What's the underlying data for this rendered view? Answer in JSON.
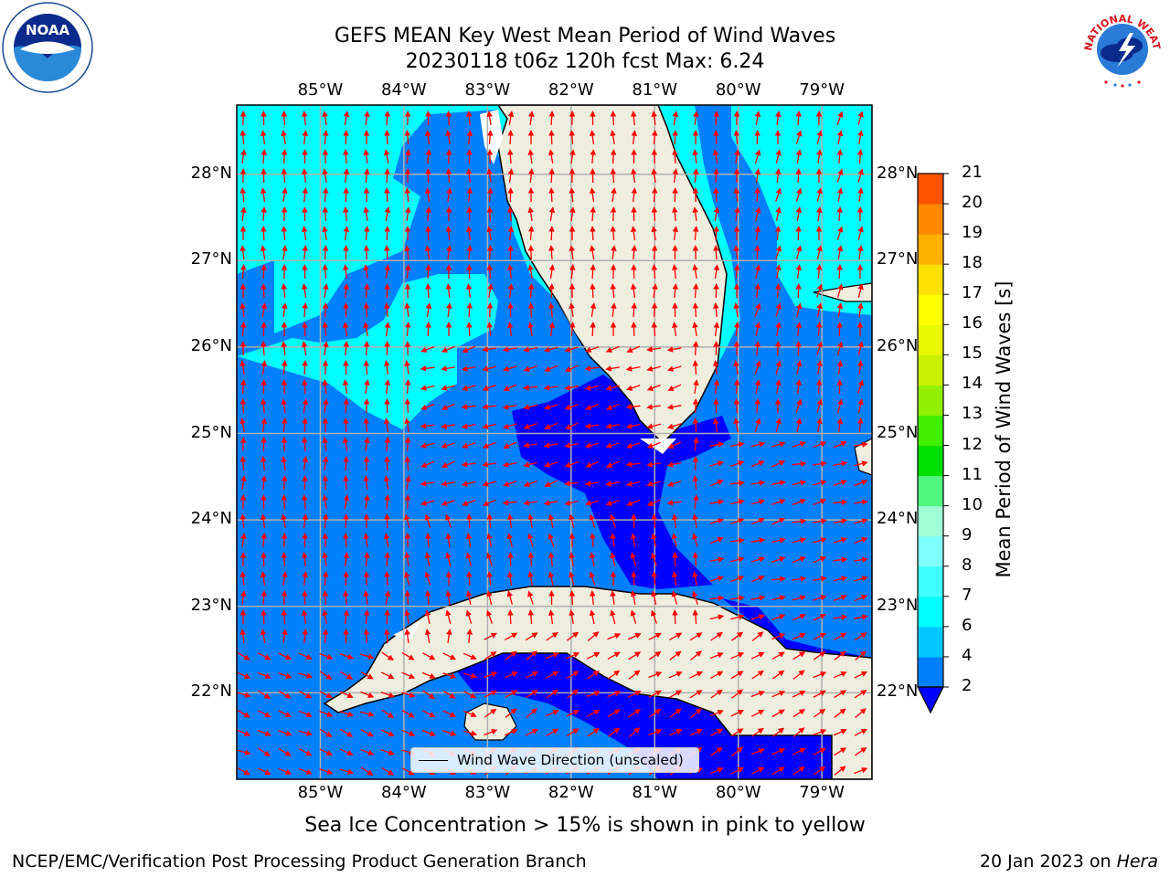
{
  "title": {
    "line1": "GEFS MEAN Key West Mean Period of Wind Waves",
    "line2": "20230118 t06z 120h fcst   Max: 6.24"
  },
  "map": {
    "lon_labels": [
      "85°W",
      "84°W",
      "83°W",
      "82°W",
      "81°W",
      "80°W",
      "79°W"
    ],
    "lat_labels": [
      "28°N",
      "27°N",
      "26°N",
      "25°N",
      "24°N",
      "23°N",
      "22°N"
    ],
    "lon_values": [
      -85,
      -84,
      -83,
      -82,
      -81,
      -80,
      -79
    ],
    "lat_values": [
      28,
      27,
      26,
      25,
      24,
      23,
      22
    ],
    "lon_range": [
      -86,
      -78.4
    ],
    "lat_range": [
      21.0,
      28.8
    ],
    "land_color": "#efedde",
    "ocean_colors": {
      "cyan": "#00ffff",
      "blue": "#007fff",
      "darkblue": "#0000ff"
    },
    "arrow_color": "#ff0000",
    "gridline_color": "#b0b0b0",
    "legend_label": "Wind Wave Direction (unscaled)"
  },
  "colorbar": {
    "label": "Mean Period of Wind Waves [s]",
    "ticks": [
      "2",
      "4",
      "6",
      "7",
      "8",
      "9",
      "10",
      "11",
      "12",
      "13",
      "14",
      "15",
      "16",
      "17",
      "18",
      "19",
      "20",
      "21"
    ],
    "colors": [
      "#0080ff",
      "#00c8ff",
      "#00ffff",
      "#40ffff",
      "#80ffff",
      "#a0ffd8",
      "#50f880",
      "#00e000",
      "#40f000",
      "#90f000",
      "#c8f000",
      "#e8f800",
      "#ffff00",
      "#ffe000",
      "#ffb000",
      "#ff8800",
      "#ff5500",
      "#ff2200",
      "#ff0000"
    ],
    "extend_color": "#0000ff"
  },
  "footer": {
    "caption": "Sea Ice Concentration > 15% is shown in pink to yellow",
    "left": "NCEP/EMC/Verification Post Processing Product Generation Branch",
    "date": "20 Jan 2023 on",
    "host": "Hera"
  },
  "logos": {
    "noaa_text": "NOAA",
    "nws_text": "NATIONAL WEATHER SERVICE"
  }
}
